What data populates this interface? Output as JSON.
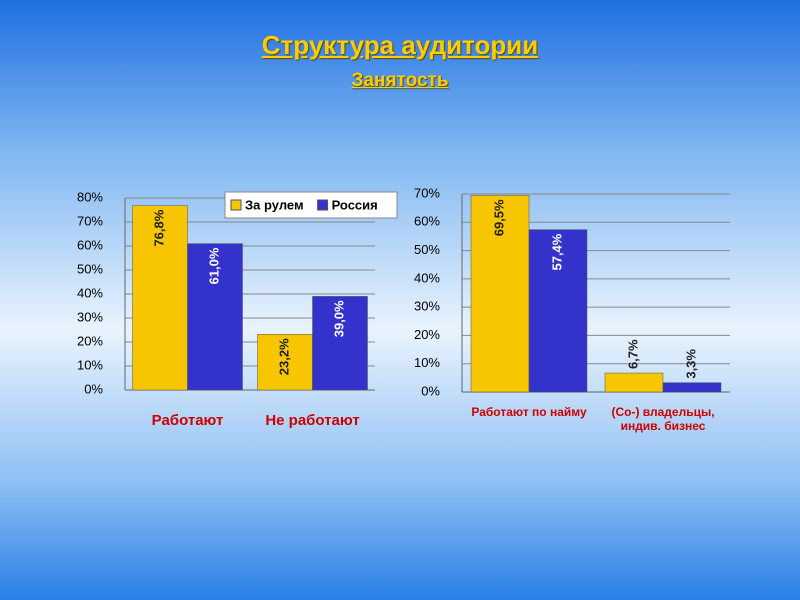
{
  "slide": {
    "title": "Структура аудитории",
    "subtitle": "Занятость"
  },
  "chart_data": [
    {
      "type": "bar",
      "categories": [
        "Работают",
        "Не работают"
      ],
      "series": [
        {
          "name": "За рулем",
          "color": "#f7c600",
          "values": [
            76.8,
            23.2
          ],
          "value_labels": [
            "76,8%",
            "23,2%"
          ]
        },
        {
          "name": "Россия",
          "color": "#3333cc",
          "values": [
            61.0,
            39.0
          ],
          "value_labels": [
            "61,0%",
            "39,0%"
          ]
        }
      ],
      "ylim": [
        0,
        80
      ],
      "yticks": [
        {
          "value": 0,
          "label": "0%"
        },
        {
          "value": 10,
          "label": "10%"
        },
        {
          "value": 20,
          "label": "20%"
        },
        {
          "value": 30,
          "label": "30%"
        },
        {
          "value": 40,
          "label": "40%"
        },
        {
          "value": 50,
          "label": "50%"
        },
        {
          "value": 60,
          "label": "60%"
        },
        {
          "value": 70,
          "label": "70%"
        },
        {
          "value": 80,
          "label": "80%"
        }
      ],
      "grid": true,
      "legend": "top-right"
    },
    {
      "type": "bar",
      "categories": [
        "Работают по найму",
        "(Со-) владельцы, индив. бизнес"
      ],
      "series": [
        {
          "color": "#f7c600",
          "values": [
            69.5,
            6.7
          ],
          "value_labels": [
            "69,5%",
            "6,7%"
          ]
        },
        {
          "color": "#3333cc",
          "values": [
            57.4,
            3.3
          ],
          "value_labels": [
            "57,4%",
            "3,3%"
          ]
        }
      ],
      "ylim": [
        0,
        70
      ],
      "yticks": [
        {
          "value": 0,
          "label": "0%"
        },
        {
          "value": 10,
          "label": "10%"
        },
        {
          "value": 20,
          "label": "20%"
        },
        {
          "value": 30,
          "label": "30%"
        },
        {
          "value": 40,
          "label": "40%"
        },
        {
          "value": 50,
          "label": "50%"
        },
        {
          "value": 60,
          "label": "60%"
        },
        {
          "value": 70,
          "label": "70%"
        }
      ],
      "grid": true
    }
  ]
}
